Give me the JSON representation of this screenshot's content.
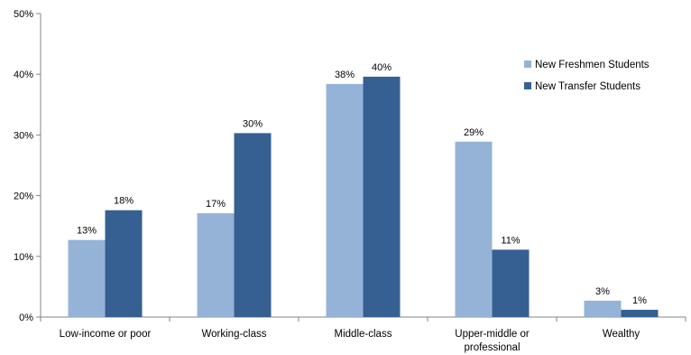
{
  "chart_data": {
    "type": "bar",
    "title": "",
    "xlabel": "",
    "ylabel": "",
    "ylim": [
      0,
      50
    ],
    "ytick_step": 10,
    "ytick_suffix": "%",
    "grid": false,
    "legend_position": "top-right",
    "categories": [
      [
        "Low-income or poor"
      ],
      [
        "Working-class"
      ],
      [
        "Middle-class"
      ],
      [
        "Upper-middle or",
        "professional"
      ],
      [
        "Wealthy"
      ]
    ],
    "series": [
      {
        "name": "New Freshmen Students",
        "color": "#95B3D7",
        "values": [
          12.7,
          17.1,
          38.4,
          28.9,
          2.7
        ],
        "labels": [
          "13%",
          "17%",
          "38%",
          "29%",
          "3%"
        ]
      },
      {
        "name": "New Transfer Students",
        "color": "#366092",
        "values": [
          17.6,
          30.3,
          39.6,
          11.1,
          1.2
        ],
        "labels": [
          "18%",
          "30%",
          "40%",
          "11%",
          "1%"
        ]
      }
    ]
  }
}
